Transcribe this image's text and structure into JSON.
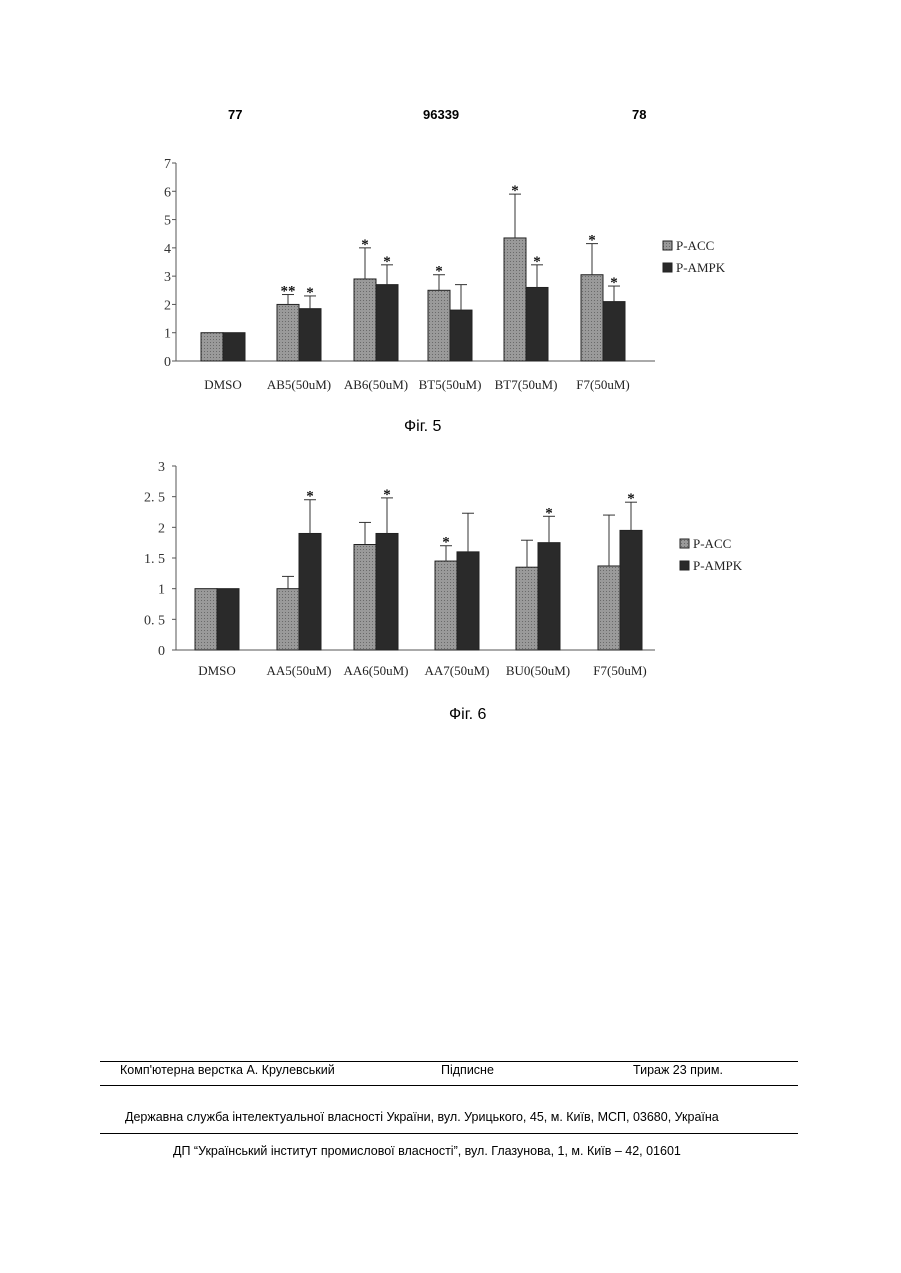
{
  "header": {
    "page_left": "77",
    "patent_number": "96339",
    "page_right": "78"
  },
  "figures": {
    "fig5_caption": "Фіг. 5",
    "fig6_caption": "Фіг. 6"
  },
  "chart_data": [
    {
      "type": "bar",
      "ylim": [
        0,
        7
      ],
      "yticks": [
        "0",
        "1",
        "2",
        "3",
        "4",
        "5",
        "6",
        "7"
      ],
      "categories": [
        "DMSO",
        "AB5(50uM)",
        "AB6(50uM)",
        "BT5(50uM)",
        "BT7(50uM)",
        "F7(50uM)"
      ],
      "series": [
        {
          "name": "P-ACC",
          "color": "#8c8c8c",
          "values": [
            1.0,
            2.0,
            2.9,
            2.5,
            4.35,
            3.05
          ],
          "errors": [
            0,
            0.35,
            1.1,
            0.55,
            1.55,
            1.1
          ],
          "stars": [
            "",
            "**",
            "*",
            "*",
            "*",
            "*"
          ]
        },
        {
          "name": "P-AMPK",
          "color": "#2a2a2a",
          "values": [
            1.0,
            1.85,
            2.7,
            1.8,
            2.6,
            2.1
          ],
          "errors": [
            0,
            0.45,
            0.7,
            0.9,
            0.8,
            0.55
          ],
          "stars": [
            "",
            "*",
            "*",
            "",
            "*",
            "*"
          ]
        }
      ],
      "legend_position": "right"
    },
    {
      "type": "bar",
      "ylim": [
        0,
        3
      ],
      "yticks": [
        "0",
        "0. 5",
        "1",
        "1. 5",
        "2",
        "2. 5",
        "3"
      ],
      "categories": [
        "DMSO",
        "AA5(50uM)",
        "AA6(50uM)",
        "AA7(50uM)",
        "BU0(50uM)",
        "F7(50uM)"
      ],
      "series": [
        {
          "name": "P-ACC",
          "color": "#8c8c8c",
          "values": [
            1.0,
            1.0,
            1.72,
            1.45,
            1.35,
            1.37
          ],
          "errors": [
            0,
            0.2,
            0.36,
            0.25,
            0.44,
            0.83
          ],
          "stars": [
            "",
            "",
            "",
            "*",
            "",
            ""
          ]
        },
        {
          "name": "P-AMPK",
          "color": "#2a2a2a",
          "values": [
            1.0,
            1.9,
            1.9,
            1.6,
            1.75,
            1.95
          ],
          "errors": [
            0,
            0.55,
            0.58,
            0.63,
            0.43,
            0.46
          ],
          "stars": [
            "",
            "*",
            "*",
            "",
            "*",
            "*"
          ]
        }
      ],
      "legend_position": "right"
    }
  ],
  "footer": {
    "typesetter": "Комп'ютерна верстка А. Крулевський",
    "signed": "Підписне",
    "circulation": "Тираж 23 прим.",
    "agency": "Державна служба інтелектуальної власності України, вул. Урицького, 45, м. Київ, МСП, 03680, Україна",
    "institute": "ДП “Український інститут промислової власності”, вул. Глазунова, 1, м. Київ – 42, 01601"
  }
}
